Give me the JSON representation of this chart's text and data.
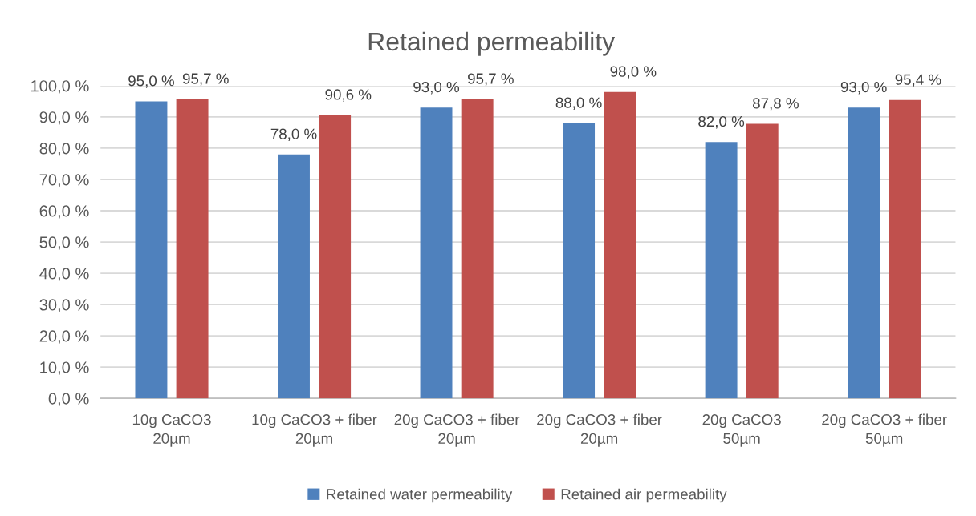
{
  "chart_data": {
    "type": "bar",
    "title": "Retained permeability",
    "categories": [
      "10g CaCO3\n20µm",
      "10g CaCO3 + fiber\n20µm",
      "20g CaCO3 + fiber\n20µm",
      "20g CaCO3 + fiber\n20µm",
      "20g CaCO3\n50µm",
      "20g CaCO3 + fiber\n50µm"
    ],
    "series": [
      {
        "name": "Retained water permeability",
        "color": "#4f81bd",
        "values": [
          95.0,
          78.0,
          93.0,
          88.0,
          82.0,
          93.0
        ],
        "value_labels": [
          "95,0 %",
          "78,0 %",
          "93,0 %",
          "88,0 %",
          "82,0 %",
          "93,0 %"
        ]
      },
      {
        "name": "Retained air permeability",
        "color": "#c0504d",
        "values": [
          95.7,
          90.6,
          95.7,
          98.0,
          87.8,
          95.4
        ],
        "value_labels": [
          "95,7 %",
          "90,6 %",
          "95,7 %",
          "98,0 %",
          "87,8 %",
          "95,4 %"
        ]
      }
    ],
    "ylim": [
      0,
      100
    ],
    "yticks": [
      {
        "value": 0,
        "label": "0,0 %"
      },
      {
        "value": 10,
        "label": "10,0 %"
      },
      {
        "value": 20,
        "label": "20,0 %"
      },
      {
        "value": 30,
        "label": "30,0 %"
      },
      {
        "value": 40,
        "label": "40,0 %"
      },
      {
        "value": 50,
        "label": "50,0 %"
      },
      {
        "value": 60,
        "label": "60,0 %"
      },
      {
        "value": 70,
        "label": "70,0 %"
      },
      {
        "value": 80,
        "label": "80,0 %"
      },
      {
        "value": 90,
        "label": "90,0 %"
      },
      {
        "value": 100,
        "label": "100,0 %"
      }
    ],
    "grid": "y",
    "legend": "bottom"
  }
}
